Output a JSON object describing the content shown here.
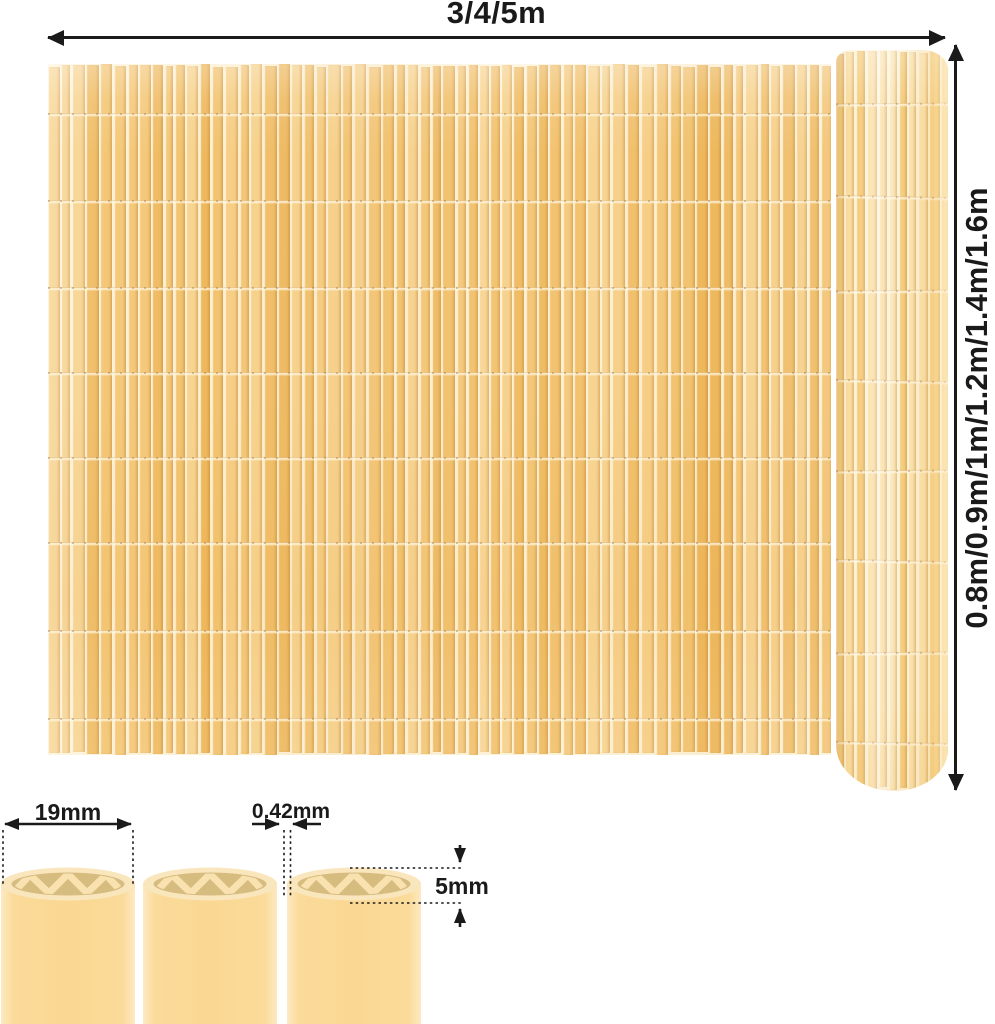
{
  "dimensions": {
    "width_label": "3/4/5m",
    "height_label": "0.8m/0.9m/1m/1.2m/1.4m/1.6m"
  },
  "cross_section": {
    "slat_width_label": "19mm",
    "slat_gap_label": "0.42mm",
    "slat_thickness_label": "5mm"
  },
  "colors": {
    "annotation": "#1a1a1a",
    "slat_gap": "#fdf2d6",
    "mat_palette": [
      "#f5c97b",
      "#f2c16c",
      "#efba5f",
      "#f7d088",
      "#f3c572",
      "#f0bd66",
      "#f8d591"
    ],
    "roll_palette": [
      "#f8d68c",
      "#f5cb79",
      "#fadc9e",
      "#f4c770",
      "#fbe3ae"
    ],
    "tube_body": "#fbdb9a",
    "tube_edge": "#fce9c3",
    "tube_rim": "#fae6bd",
    "tube_inner": "#d7bc80",
    "tube_web": "#f9e2b0"
  }
}
